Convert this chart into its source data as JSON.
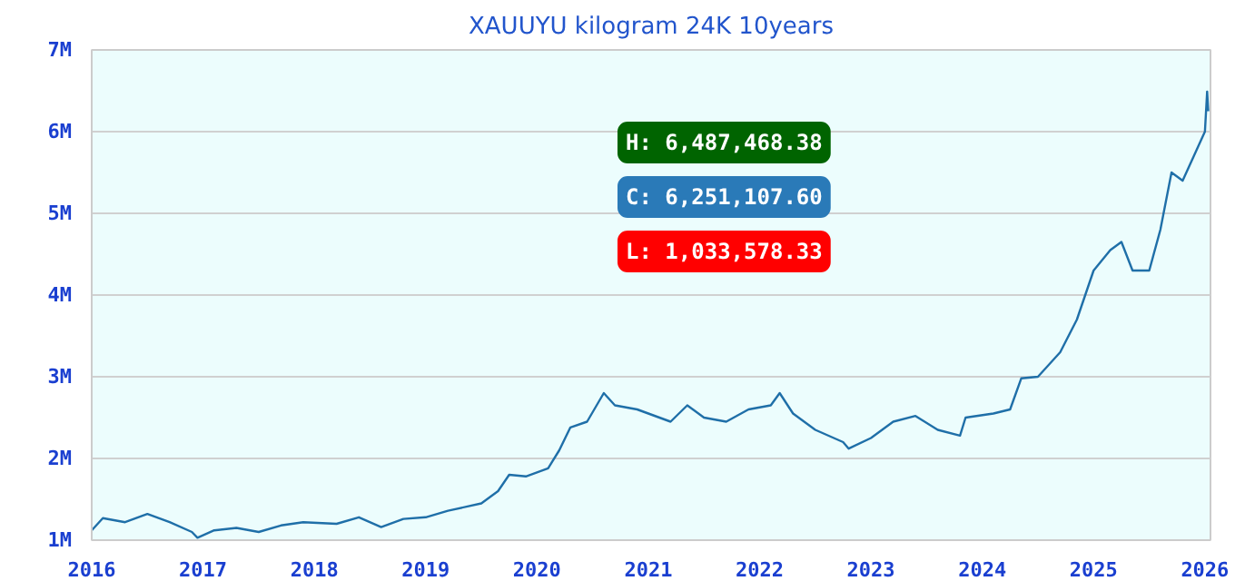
{
  "chart_data": {
    "type": "line",
    "title": "XAUUYU kilogram 24K 10years",
    "x": [
      2016.0,
      2016.1,
      2016.3,
      2016.5,
      2016.7,
      2016.9,
      2016.95,
      2017.1,
      2017.3,
      2017.5,
      2017.7,
      2017.9,
      2018.2,
      2018.4,
      2018.6,
      2018.8,
      2019.0,
      2019.2,
      2019.5,
      2019.65,
      2019.75,
      2019.9,
      2020.1,
      2020.2,
      2020.3,
      2020.45,
      2020.6,
      2020.7,
      2020.9,
      2021.0,
      2021.2,
      2021.35,
      2021.5,
      2021.7,
      2021.9,
      2022.1,
      2022.18,
      2022.3,
      2022.5,
      2022.75,
      2022.8,
      2023.0,
      2023.2,
      2023.4,
      2023.6,
      2023.8,
      2023.85,
      2024.1,
      2024.25,
      2024.35,
      2024.5,
      2024.7,
      2024.85,
      2025.0,
      2025.15,
      2025.25,
      2025.35,
      2025.5,
      2025.6,
      2025.7,
      2025.8,
      2025.9,
      2026.0,
      2026.02,
      2026.03
    ],
    "series": [
      {
        "color": "#1f6fa8",
        "values": [
          1120000,
          1270000,
          1220000,
          1320000,
          1220000,
          1100000,
          1030000,
          1120000,
          1150000,
          1100000,
          1180000,
          1220000,
          1200000,
          1280000,
          1160000,
          1260000,
          1280000,
          1360000,
          1450000,
          1600000,
          1800000,
          1780000,
          1880000,
          2100000,
          2380000,
          2450000,
          2800000,
          2650000,
          2600000,
          2550000,
          2450000,
          2650000,
          2500000,
          2450000,
          2600000,
          2650000,
          2800000,
          2550000,
          2350000,
          2200000,
          2120000,
          2250000,
          2450000,
          2520000,
          2350000,
          2280000,
          2500000,
          2550000,
          2600000,
          2980000,
          3000000,
          3300000,
          3700000,
          4300000,
          4550000,
          4650000,
          4300000,
          4300000,
          4800000,
          5500000,
          5400000,
          5700000,
          6000000,
          6490000,
          6250000
        ]
      }
    ],
    "xlim": [
      2016,
      2026.05
    ],
    "xticks": [
      2016,
      2017,
      2018,
      2019,
      2020,
      2021,
      2022,
      2023,
      2024,
      2025,
      2026
    ],
    "ylim": [
      1000000,
      7000000
    ],
    "yticks": [
      {
        "value": 1000000,
        "label": "1M"
      },
      {
        "value": 2000000,
        "label": "2M"
      },
      {
        "value": 3000000,
        "label": "3M"
      },
      {
        "value": 4000000,
        "label": "4M"
      },
      {
        "value": 5000000,
        "label": "5M"
      },
      {
        "value": 6000000,
        "label": "6M"
      },
      {
        "value": 7000000,
        "label": "7M"
      }
    ],
    "grid": "y",
    "annotations": [
      "H: 6,487,468.38",
      "C: 6,251,107.60",
      "L: 1,033,578.33"
    ]
  }
}
